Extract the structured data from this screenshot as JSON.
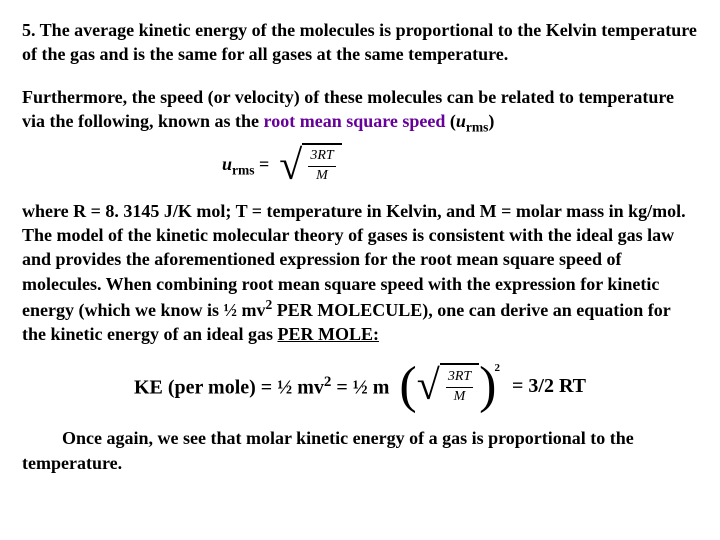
{
  "point5": "5.  The average kinetic energy of the molecules is proportional to the Kelvin temperature of the gas and is the same for all gases at the same temperature.",
  "para1_a": "Furthermore, the speed (or velocity) of these molecules can be related to temperature via the following, known as the ",
  "para1_b": "root mean square speed",
  "para1_c": " (",
  "para1_d": "u",
  "para1_e": "rms",
  "para1_f": ")",
  "eq1_lhs_u": "u",
  "eq1_lhs_rms": "rms",
  "eq1_lhs_eq": " = ",
  "frac_top": "3RT",
  "frac_bot": "M",
  "para2": "where R = 8. 3145 J/K mol; T = temperature in Kelvin, and M = molar mass in kg/mol.  The model of the kinetic molecular theory of gases is consistent with the ideal gas law and provides the aforementioned expression for the root mean square speed of molecules.  When combining root mean square speed with the expression for kinetic energy (which we know is ½ mv",
  "para2_sup": "2",
  "para2_b": " PER MOLECULE), one can derive an equation for the kinetic energy of an ideal gas ",
  "para2_permole": "PER MOLE:",
  "ke_a": "KE (per mole) = ½ mv",
  "ke_a_sup": "2",
  "ke_b": " = ½ m",
  "ke_rhs": "= 3/2 RT",
  "final": "Once again, we see that molar kinetic energy of a gas is proportional to the temperature."
}
